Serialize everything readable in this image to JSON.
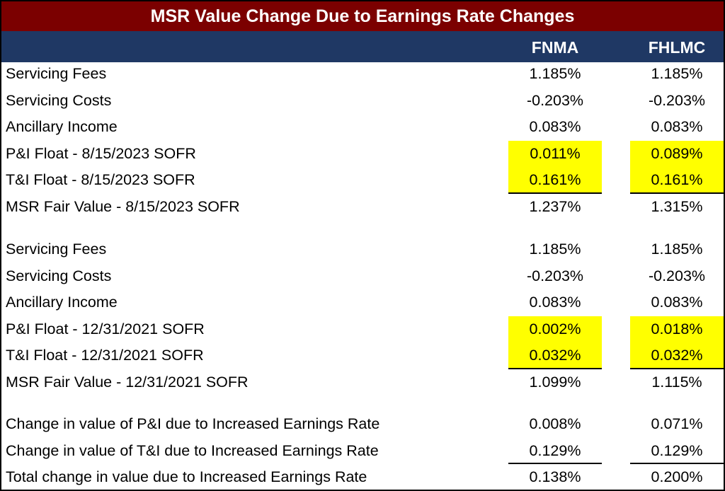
{
  "title": "MSR Value Change Due to Earnings Rate Changes",
  "columns": [
    "FNMA",
    "FHLMC"
  ],
  "rows": [
    [
      "Servicing Fees",
      "1.185%",
      "1.185%"
    ],
    [
      "Servicing Costs",
      "-0.203%",
      "-0.203%"
    ],
    [
      "Ancillary Income",
      "0.083%",
      "0.083%"
    ],
    [
      "P&I Float - 8/15/2023 SOFR",
      "0.011%",
      "0.089%"
    ],
    [
      "T&I Float - 8/15/2023 SOFR",
      "0.161%",
      "0.161%"
    ],
    [
      "MSR Fair Value - 8/15/2023 SOFR",
      "1.237%",
      "1.315%"
    ],
    [
      "Servicing Fees",
      "1.185%",
      "1.185%"
    ],
    [
      "Servicing Costs",
      "-0.203%",
      "-0.203%"
    ],
    [
      "Ancillary Income",
      "0.083%",
      "0.083%"
    ],
    [
      "P&I Float - 12/31/2021 SOFR",
      "0.002%",
      "0.018%"
    ],
    [
      "T&I Float - 12/31/2021 SOFR",
      "0.032%",
      "0.032%"
    ],
    [
      "MSR Fair Value - 12/31/2021 SOFR",
      "1.099%",
      "1.115%"
    ],
    [
      "Change in value of P&I due to Increased Earnings Rate",
      "0.008%",
      "0.071%"
    ],
    [
      "Change in value of T&I due to Increased Earnings Rate",
      "0.129%",
      "0.129%"
    ],
    [
      "Total change in value due to Increased Earnings Rate",
      "0.138%",
      "0.200%"
    ]
  ]
}
